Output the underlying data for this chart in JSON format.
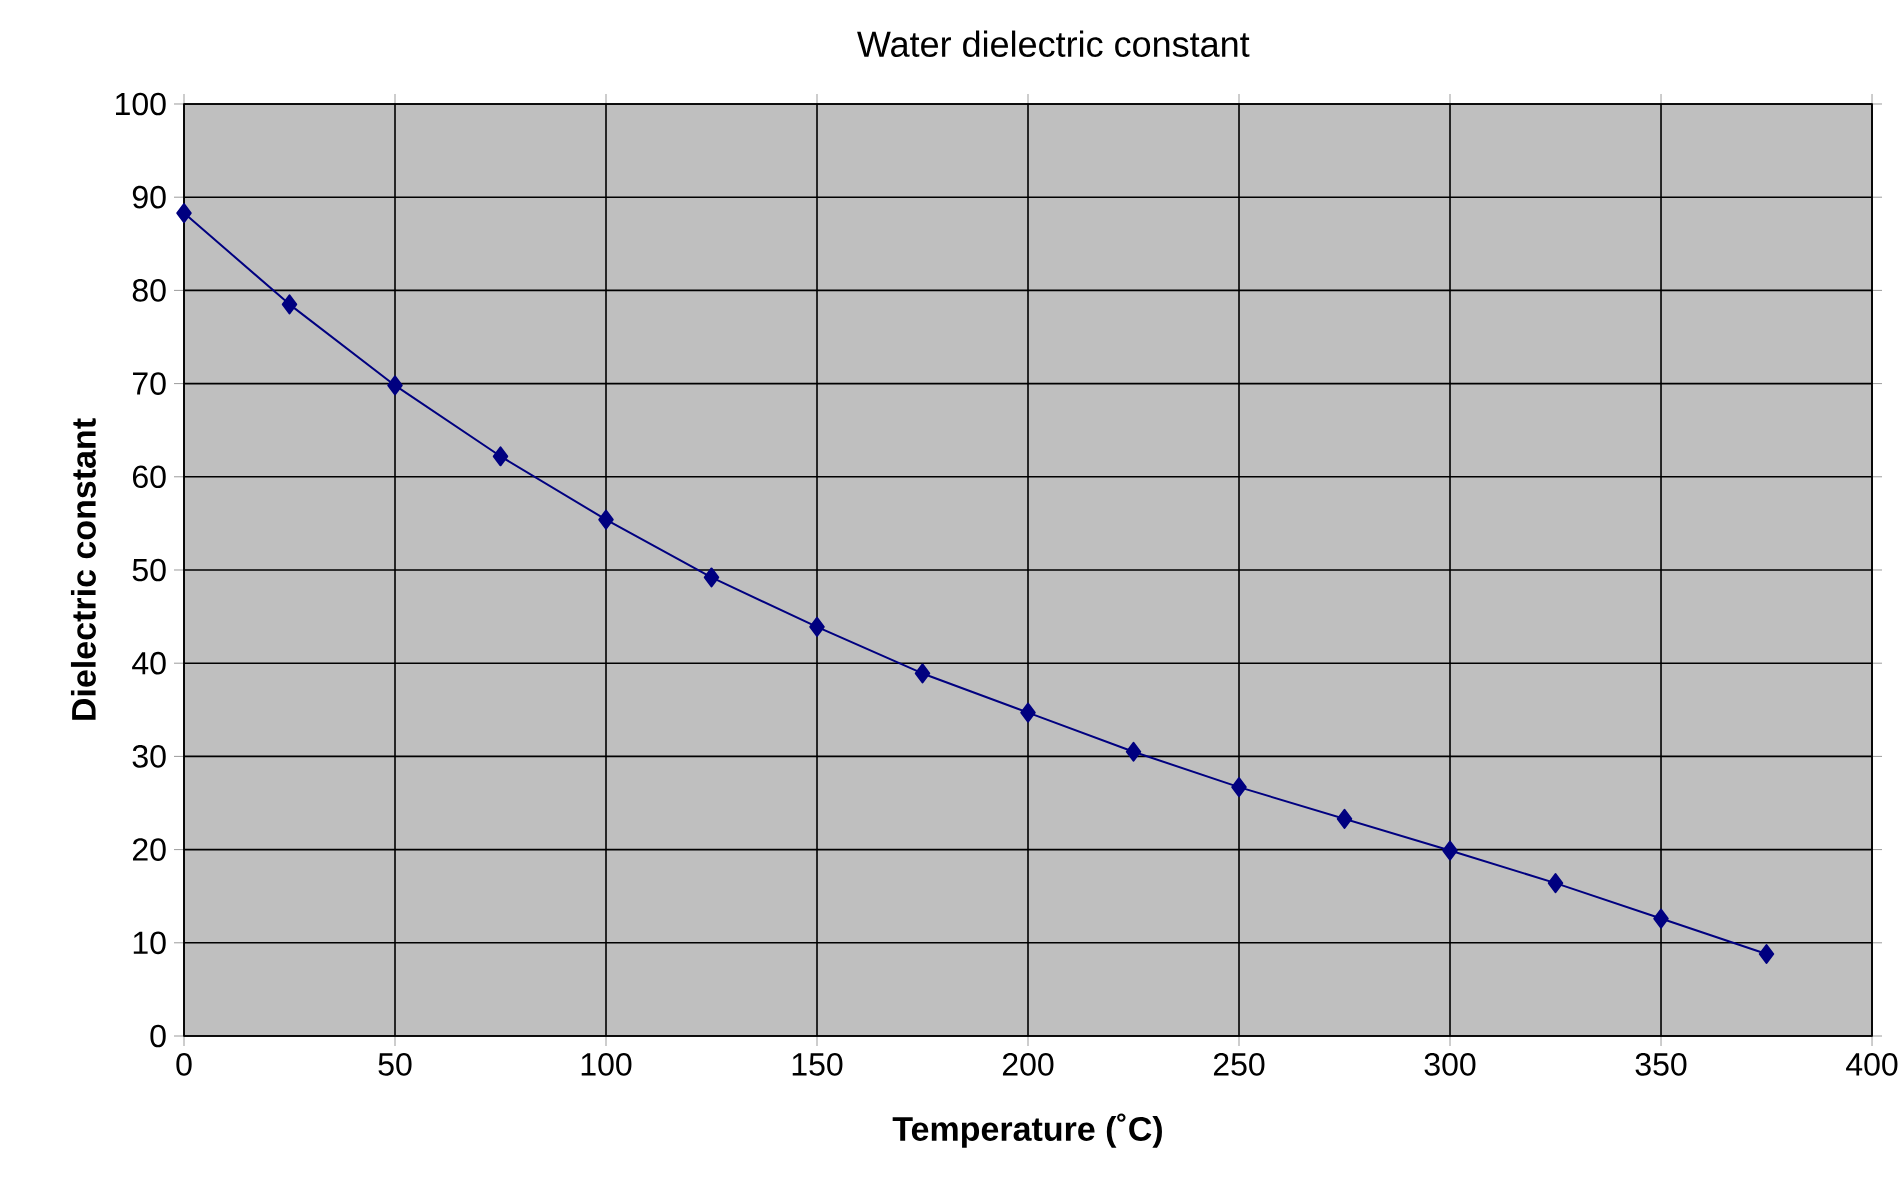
{
  "chart_data": {
    "type": "line",
    "title": "Water dielectric constant",
    "xlabel": "Temperature (˚C)",
    "ylabel": "Dielectric constant",
    "x": [
      0,
      25,
      50,
      75,
      100,
      125,
      150,
      175,
      200,
      225,
      250,
      275,
      300,
      325,
      350,
      375
    ],
    "series": [
      {
        "color": "#000080",
        "values": [
          88.3,
          78.5,
          69.8,
          62.2,
          55.4,
          49.2,
          43.9,
          38.9,
          34.7,
          30.5,
          26.7,
          23.3,
          19.9,
          16.4,
          12.6,
          8.8
        ]
      }
    ],
    "xlim": [
      0,
      400
    ],
    "xticks": [
      0,
      50,
      100,
      150,
      200,
      250,
      300,
      350,
      400
    ],
    "ylim": [
      0,
      100
    ],
    "yticks": [
      0,
      10,
      20,
      30,
      40,
      50,
      60,
      70,
      80,
      90,
      100
    ],
    "grid": true,
    "marker": "diamond",
    "line_style": "solid"
  }
}
